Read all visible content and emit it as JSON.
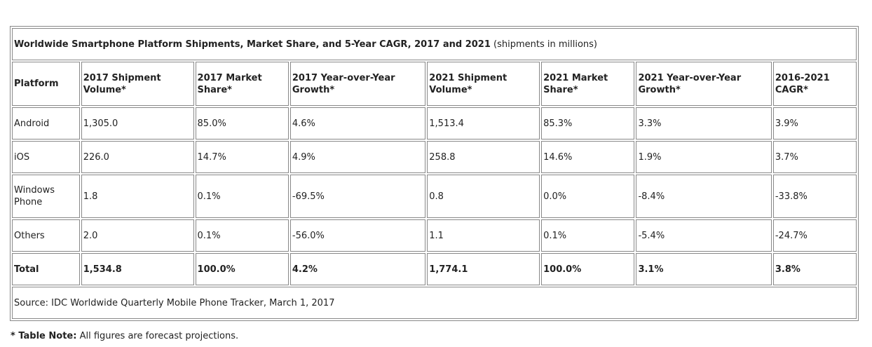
{
  "table": {
    "title_bold": "Worldwide Smartphone Platform Shipments, Market Share, and 5-Year CAGR, 2017 and 2021",
    "title_rest": " (shipments in millions)",
    "headers": [
      "Platform",
      "2017 Shipment Volume*",
      "2017 Market Share*",
      "2017 Year-over-Year Growth*",
      "2021 Shipment Volume*",
      "2021 Market Share*",
      "2021 Year-over-Year Growth*",
      "2016-2021 CAGR*"
    ],
    "rows": [
      [
        "Android",
        "1,305.0",
        "85.0%",
        "4.6%",
        "1,513.4",
        "85.3%",
        "3.3%",
        "3.9%"
      ],
      [
        "iOS",
        "226.0",
        "14.7%",
        "4.9%",
        "258.8",
        "14.6%",
        "1.9%",
        "3.7%"
      ],
      [
        "Windows Phone",
        "1.8",
        "0.1%",
        "-69.5%",
        "0.8",
        "0.0%",
        "-8.4%",
        "-33.8%"
      ],
      [
        "Others",
        "2.0",
        "0.1%",
        "-56.0%",
        "1.1",
        "0.1%",
        "-5.4%",
        "-24.7%"
      ]
    ],
    "total": [
      "Total",
      "1,534.8",
      "100.0%",
      "4.2%",
      "1,774.1",
      "100.0%",
      "3.1%",
      "3.8%"
    ],
    "source": "Source: IDC Worldwide Quarterly Mobile Phone Tracker, March 1, 2017"
  },
  "note": {
    "label": "* Table Note:",
    "text": " All figures are forecast projections."
  }
}
